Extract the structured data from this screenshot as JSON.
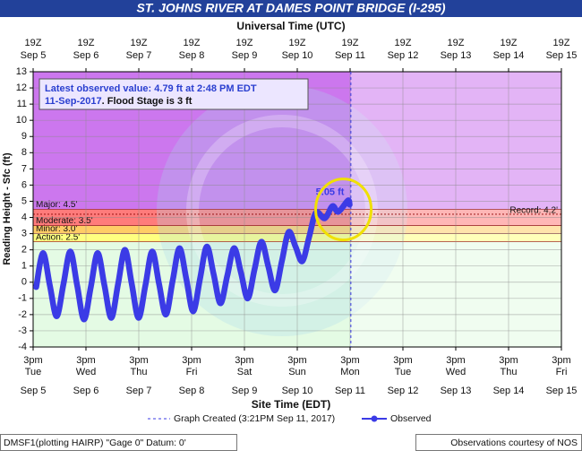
{
  "chart_data": {
    "type": "line",
    "title": "ST. JOHNS RIVER AT DAMES POINT BRIDGE (I-295)",
    "x2_axis_label": "Universal Time (UTC)",
    "x_axis_label": "Site Time (EDT)",
    "y_axis_label": "Reading Height - Sfc (ft)",
    "ylim": [
      -4,
      13
    ],
    "yticks": [
      -4,
      -3,
      -2,
      -1,
      0,
      1,
      2,
      3,
      4,
      5,
      6,
      7,
      8,
      9,
      10,
      11,
      12,
      13
    ],
    "grid": true,
    "xlim": [
      "2017-09-05T15:00",
      "2017-09-15T15:00"
    ],
    "xticks": [
      {
        "value": "2017-09-05T15:00",
        "label": "3pm"
      },
      {
        "value": "2017-09-06T15:00",
        "label": "3pm"
      },
      {
        "value": "2017-09-07T15:00",
        "label": "3pm"
      },
      {
        "value": "2017-09-08T15:00",
        "label": "3pm"
      },
      {
        "value": "2017-09-09T15:00",
        "label": "3pm"
      },
      {
        "value": "2017-09-10T15:00",
        "label": "3pm"
      },
      {
        "value": "2017-09-11T15:00",
        "label": "3pm"
      },
      {
        "value": "2017-09-12T15:00",
        "label": "3pm"
      },
      {
        "value": "2017-09-13T15:00",
        "label": "3pm"
      },
      {
        "value": "2017-09-14T15:00",
        "label": "3pm"
      },
      {
        "value": "2017-09-15T15:00",
        "label": "3pm"
      }
    ],
    "xtick_weekdays": [
      "Tue",
      "Wed",
      "Thu",
      "Fri",
      "Sat",
      "Sun",
      "Mon",
      "Tue",
      "Wed",
      "Thu",
      "Fri"
    ],
    "xtick_dates": [
      "Sep 5",
      "Sep 6",
      "Sep 7",
      "Sep 8",
      "Sep 9",
      "Sep 10",
      "Sep 11",
      "Sep 12",
      "Sep 13",
      "Sep 14",
      "Sep 15"
    ],
    "x2lim": [
      "2017-09-05T19:00",
      "2017-09-15T19:00"
    ],
    "x2ticks": [
      {
        "value": "2017-09-05T19:00",
        "label": "19Z"
      },
      {
        "value": "2017-09-06T19:00",
        "label": "19Z"
      },
      {
        "value": "2017-09-07T19:00",
        "label": "19Z"
      },
      {
        "value": "2017-09-08T19:00",
        "label": "19Z"
      },
      {
        "value": "2017-09-09T19:00",
        "label": "19Z"
      },
      {
        "value": "2017-09-10T19:00",
        "label": "19Z"
      },
      {
        "value": "2017-09-11T19:00",
        "label": "19Z"
      },
      {
        "value": "2017-09-12T19:00",
        "label": "19Z"
      },
      {
        "value": "2017-09-13T19:00",
        "label": "19Z"
      },
      {
        "value": "2017-09-14T19:00",
        "label": "19Z"
      },
      {
        "value": "2017-09-15T19:00",
        "label": "19Z"
      }
    ],
    "x2tick_dates": [
      "Sep 5",
      "Sep 6",
      "Sep 7",
      "Sep 8",
      "Sep 9",
      "Sep 10",
      "Sep 11",
      "Sep 12",
      "Sep 13",
      "Sep 14",
      "Sep 15"
    ],
    "flood_levels": [
      {
        "label": "Action: 2.5'",
        "value": 2.5,
        "color": "#ffff80"
      },
      {
        "label": "Minor: 3.0'",
        "value": 3.0,
        "color": "#ffcc66"
      },
      {
        "label": "Moderate: 3.5'",
        "value": 3.5,
        "color": "#ff7b7b"
      },
      {
        "label": "Major: 4.5'",
        "value": 4.5,
        "color": "#cc77ee"
      }
    ],
    "below_action_color": "#e4fbe4",
    "record": {
      "label": "Record: 4.2'",
      "value": 4.2
    },
    "info": {
      "line1": "Latest observed value: 4.79 ft at 2:48 PM EDT",
      "date": "11-Sep-2017",
      "flood_stage": ". Flood Stage is 3 ft"
    },
    "peak_label": "5.05 ft",
    "created_x": "2017-09-11T15:21",
    "legend_created": "Graph Created (3:21PM Sep 11, 2017)",
    "series": [
      {
        "name": "Observed",
        "color": "#3b3be6",
        "x": [
          "2017-09-05T16:24",
          "2017-09-05T19:30",
          "2017-09-05T22:36",
          "2017-09-06T01:42",
          "2017-09-06T04:48",
          "2017-09-06T07:54",
          "2017-09-06T11:00",
          "2017-09-06T14:06",
          "2017-09-06T17:12",
          "2017-09-06T20:18",
          "2017-09-06T23:24",
          "2017-09-07T02:30",
          "2017-09-07T05:36",
          "2017-09-07T08:42",
          "2017-09-07T11:48",
          "2017-09-07T14:54",
          "2017-09-07T18:00",
          "2017-09-07T21:06",
          "2017-09-08T00:12",
          "2017-09-08T03:18",
          "2017-09-08T06:24",
          "2017-09-08T09:30",
          "2017-09-08T12:36",
          "2017-09-08T15:42",
          "2017-09-08T18:48",
          "2017-09-08T21:54",
          "2017-09-09T01:00",
          "2017-09-09T04:06",
          "2017-09-09T07:12",
          "2017-09-09T10:18",
          "2017-09-09T13:24",
          "2017-09-09T16:30",
          "2017-09-09T19:36",
          "2017-09-09T22:42",
          "2017-09-10T01:48",
          "2017-09-10T04:54",
          "2017-09-10T08:00",
          "2017-09-10T11:06",
          "2017-09-10T14:12",
          "2017-09-10T17:18",
          "2017-09-10T20:24",
          "2017-09-10T23:30",
          "2017-09-11T03:30",
          "2017-09-11T07:00",
          "2017-09-11T09:40",
          "2017-09-11T14:00",
          "2017-09-11T14:48"
        ],
        "values": [
          -0.3,
          1.8,
          -0.2,
          -2.1,
          -0.1,
          1.9,
          -0.2,
          -2.3,
          -0.3,
          1.8,
          -0.2,
          -2.2,
          -0.1,
          2.0,
          -0.1,
          -2.2,
          -0.2,
          1.9,
          -0.1,
          -2.0,
          0.1,
          2.1,
          0.2,
          -1.8,
          0.2,
          2.2,
          0.5,
          -1.3,
          0.4,
          2.1,
          0.6,
          -1.0,
          0.8,
          2.5,
          1.0,
          -0.5,
          1.3,
          3.1,
          2.2,
          1.3,
          2.8,
          4.3,
          3.95,
          4.7,
          4.35,
          5.05,
          4.79
        ]
      }
    ],
    "footer_left": "DMSF1(plotting HAIRP) \"Gage 0\" Datum: 0'",
    "footer_right": "Observations courtesy of NOS"
  }
}
